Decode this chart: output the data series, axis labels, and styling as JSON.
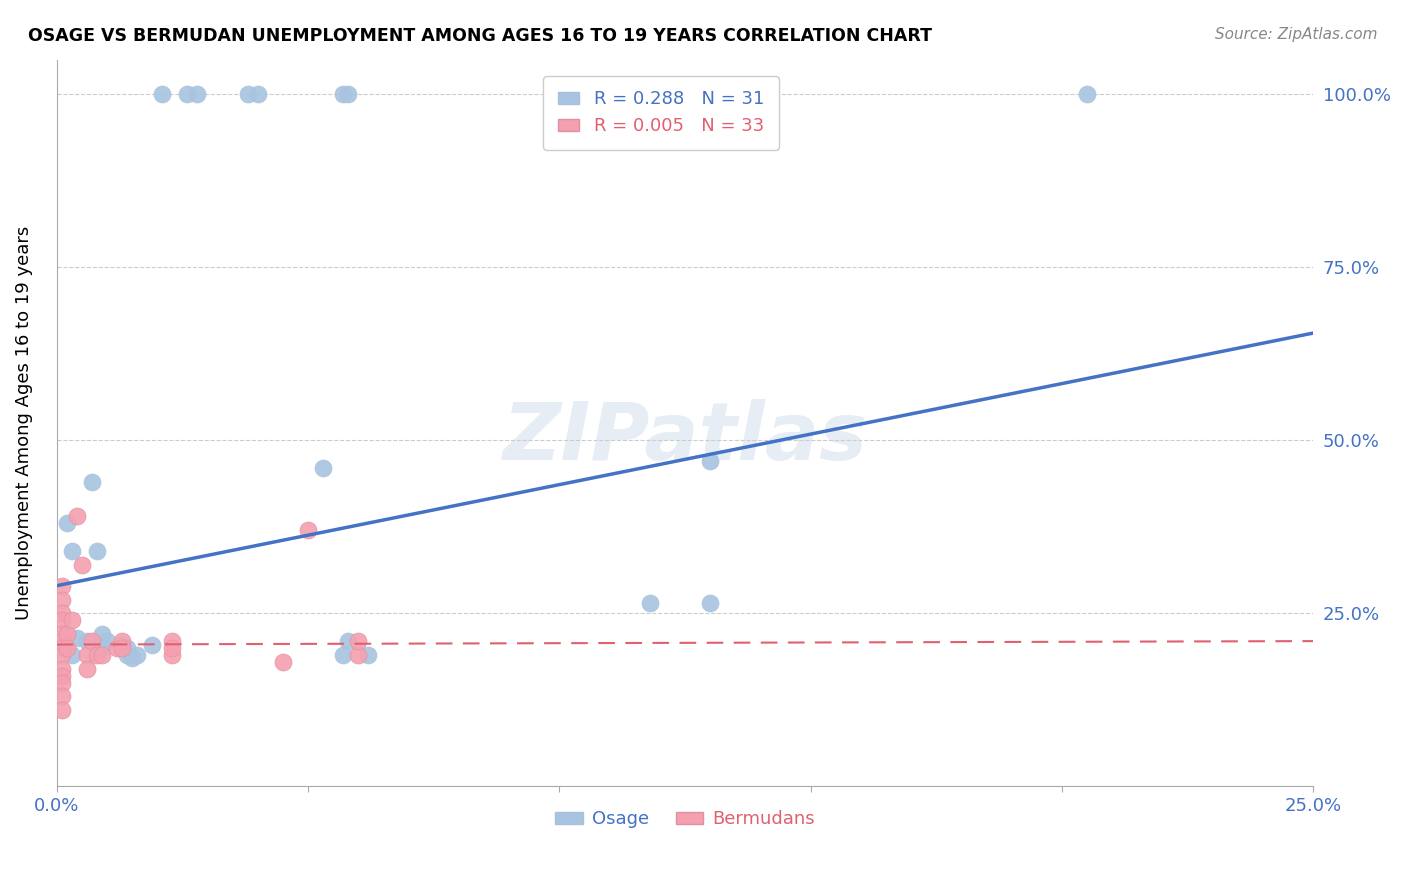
{
  "title": "OSAGE VS BERMUDAN UNEMPLOYMENT AMONG AGES 16 TO 19 YEARS CORRELATION CHART",
  "source": "Source: ZipAtlas.com",
  "ylabel": "Unemployment Among Ages 16 to 19 years",
  "xlim": [
    0.0,
    0.25
  ],
  "ylim": [
    0.0,
    1.05
  ],
  "xticks": [
    0.0,
    0.05,
    0.1,
    0.15,
    0.2,
    0.25
  ],
  "yticks": [
    0.0,
    0.25,
    0.5,
    0.75,
    1.0
  ],
  "ytick_labels": [
    "",
    "25.0%",
    "50.0%",
    "75.0%",
    "100.0%"
  ],
  "xtick_labels": [
    "0.0%",
    "",
    "",
    "",
    "",
    "25.0%"
  ],
  "osage_r": 0.288,
  "osage_n": 31,
  "bermudan_r": 0.005,
  "bermudan_n": 33,
  "osage_color": "#a8c4e0",
  "osage_line_color": "#4472c4",
  "bermudan_color": "#f4a0b0",
  "bermudan_line_color": "#e06070",
  "watermark": "ZIPatlas",
  "osage_x": [
    0.021,
    0.026,
    0.028,
    0.038,
    0.04,
    0.057,
    0.058,
    0.205,
    0.007,
    0.003,
    0.008,
    0.004,
    0.006,
    0.009,
    0.009,
    0.01,
    0.013,
    0.014,
    0.014,
    0.015,
    0.016,
    0.019,
    0.053,
    0.058,
    0.057,
    0.062,
    0.118,
    0.13,
    0.13,
    0.002,
    0.003
  ],
  "osage_y": [
    1.0,
    1.0,
    1.0,
    1.0,
    1.0,
    1.0,
    1.0,
    1.0,
    0.44,
    0.34,
    0.34,
    0.215,
    0.21,
    0.22,
    0.2,
    0.21,
    0.205,
    0.2,
    0.19,
    0.185,
    0.19,
    0.205,
    0.46,
    0.21,
    0.19,
    0.19,
    0.265,
    0.265,
    0.47,
    0.38,
    0.19
  ],
  "bermudan_x": [
    0.001,
    0.001,
    0.001,
    0.001,
    0.001,
    0.001,
    0.001,
    0.001,
    0.001,
    0.001,
    0.001,
    0.001,
    0.001,
    0.002,
    0.002,
    0.003,
    0.004,
    0.005,
    0.006,
    0.006,
    0.007,
    0.008,
    0.009,
    0.012,
    0.013,
    0.013,
    0.023,
    0.023,
    0.023,
    0.045,
    0.05,
    0.06,
    0.06
  ],
  "bermudan_y": [
    0.29,
    0.27,
    0.25,
    0.24,
    0.22,
    0.21,
    0.2,
    0.19,
    0.17,
    0.16,
    0.15,
    0.13,
    0.11,
    0.22,
    0.2,
    0.24,
    0.39,
    0.32,
    0.19,
    0.17,
    0.21,
    0.19,
    0.19,
    0.2,
    0.21,
    0.2,
    0.19,
    0.21,
    0.2,
    0.18,
    0.37,
    0.19,
    0.21
  ],
  "osage_trend_x": [
    0.0,
    0.25
  ],
  "osage_trend_y": [
    0.29,
    0.655
  ],
  "bermudan_trend_x": [
    0.0,
    0.25
  ],
  "bermudan_trend_y": [
    0.205,
    0.21
  ]
}
